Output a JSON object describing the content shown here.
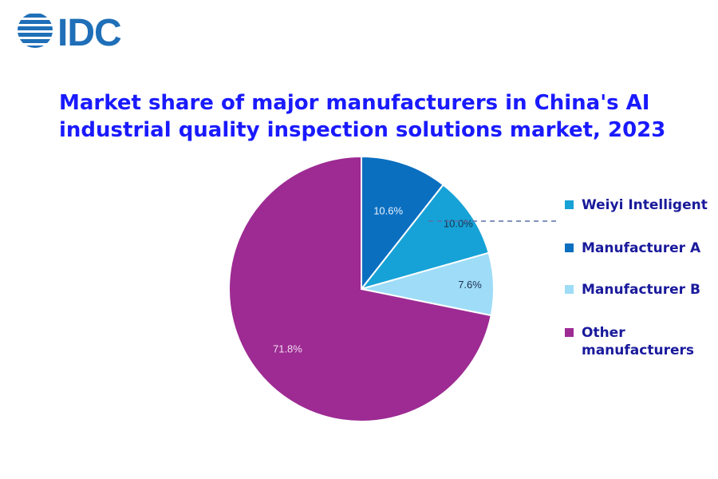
{
  "logo": {
    "text": "IDC"
  },
  "header": {
    "title_line1": "Market share of major manufacturers in China's AI",
    "title_line2": "industrial quality inspection solutions market, 2023"
  },
  "chart_data": {
    "type": "pie",
    "title": "Market share of major manufacturers in China's AI industrial quality inspection solutions market, 2023",
    "slices": [
      {
        "label": "Manufacturer A",
        "value": 10.6,
        "display": "10.6%",
        "color": "#0b6fc0"
      },
      {
        "label": "Weiyi Intelligent",
        "value": 10.0,
        "display": "10.0%",
        "color": "#16a2d6"
      },
      {
        "label": "Manufacturer B",
        "value": 7.6,
        "display": "7.6%",
        "color": "#9fdcf7"
      },
      {
        "label": "Other manufacturers",
        "value": 71.8,
        "display": "71.8%",
        "color": "#9d2b93"
      }
    ],
    "legend": {
      "placement": "right",
      "items": [
        {
          "label": "Weiyi Intelligent",
          "color": "#16a2d6"
        },
        {
          "label": "Manufacturer A",
          "color": "#0b6fc0"
        },
        {
          "label": "Manufacturer B",
          "color": "#9fdcf7"
        },
        {
          "label": "Other manufacturers",
          "color": "#9d2b93"
        }
      ]
    },
    "callout": "Weiyi Intelligent"
  }
}
